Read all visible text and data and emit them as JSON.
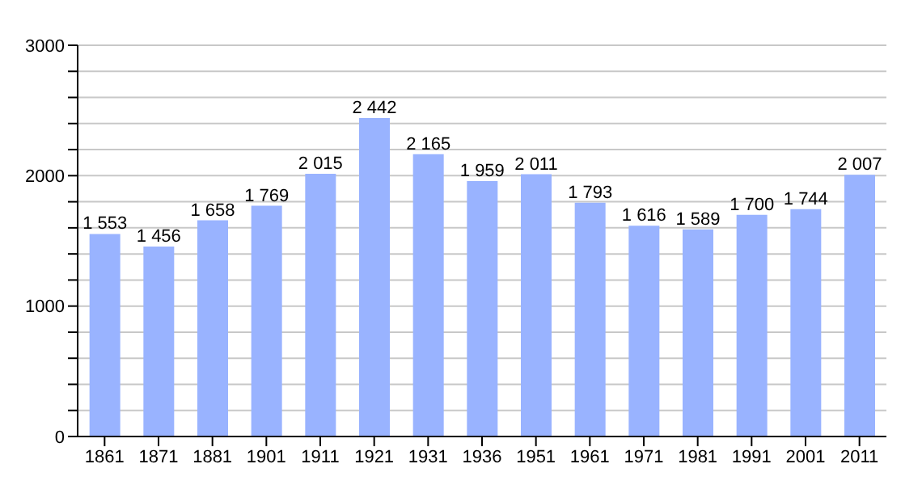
{
  "chart_data": {
    "type": "bar",
    "categories": [
      "1861",
      "1871",
      "1881",
      "1901",
      "1911",
      "1921",
      "1931",
      "1936",
      "1951",
      "1961",
      "1971",
      "1981",
      "1991",
      "2001",
      "2011"
    ],
    "values": [
      1553,
      1456,
      1658,
      1769,
      2015,
      2442,
      2165,
      1959,
      2011,
      1793,
      1616,
      1589,
      1700,
      1744,
      2007
    ],
    "value_labels": [
      "1 553",
      "1 456",
      "1 658",
      "1 769",
      "2 015",
      "2 442",
      "2 165",
      "1 959",
      "2 011",
      "1 793",
      "1 616",
      "1 589",
      "1 700",
      "1 744",
      "2 007"
    ],
    "color": "#99b3ff",
    "ylim": [
      0,
      3000
    ],
    "yticks": [
      0,
      {
        "value": 200,
        "label": null
      },
      {
        "value": 400,
        "label": null
      },
      {
        "value": 600,
        "label": null
      },
      {
        "value": 800,
        "label": null
      },
      1000,
      {
        "value": 1200,
        "label": null
      },
      {
        "value": 1400,
        "label": null
      },
      {
        "value": 1600,
        "label": null
      },
      {
        "value": 1800,
        "label": null
      },
      2000,
      {
        "value": 2200,
        "label": null
      },
      {
        "value": 2400,
        "label": null
      },
      {
        "value": 2600,
        "label": null
      },
      {
        "value": 2800,
        "label": null
      },
      3000
    ],
    "grid": "y"
  }
}
